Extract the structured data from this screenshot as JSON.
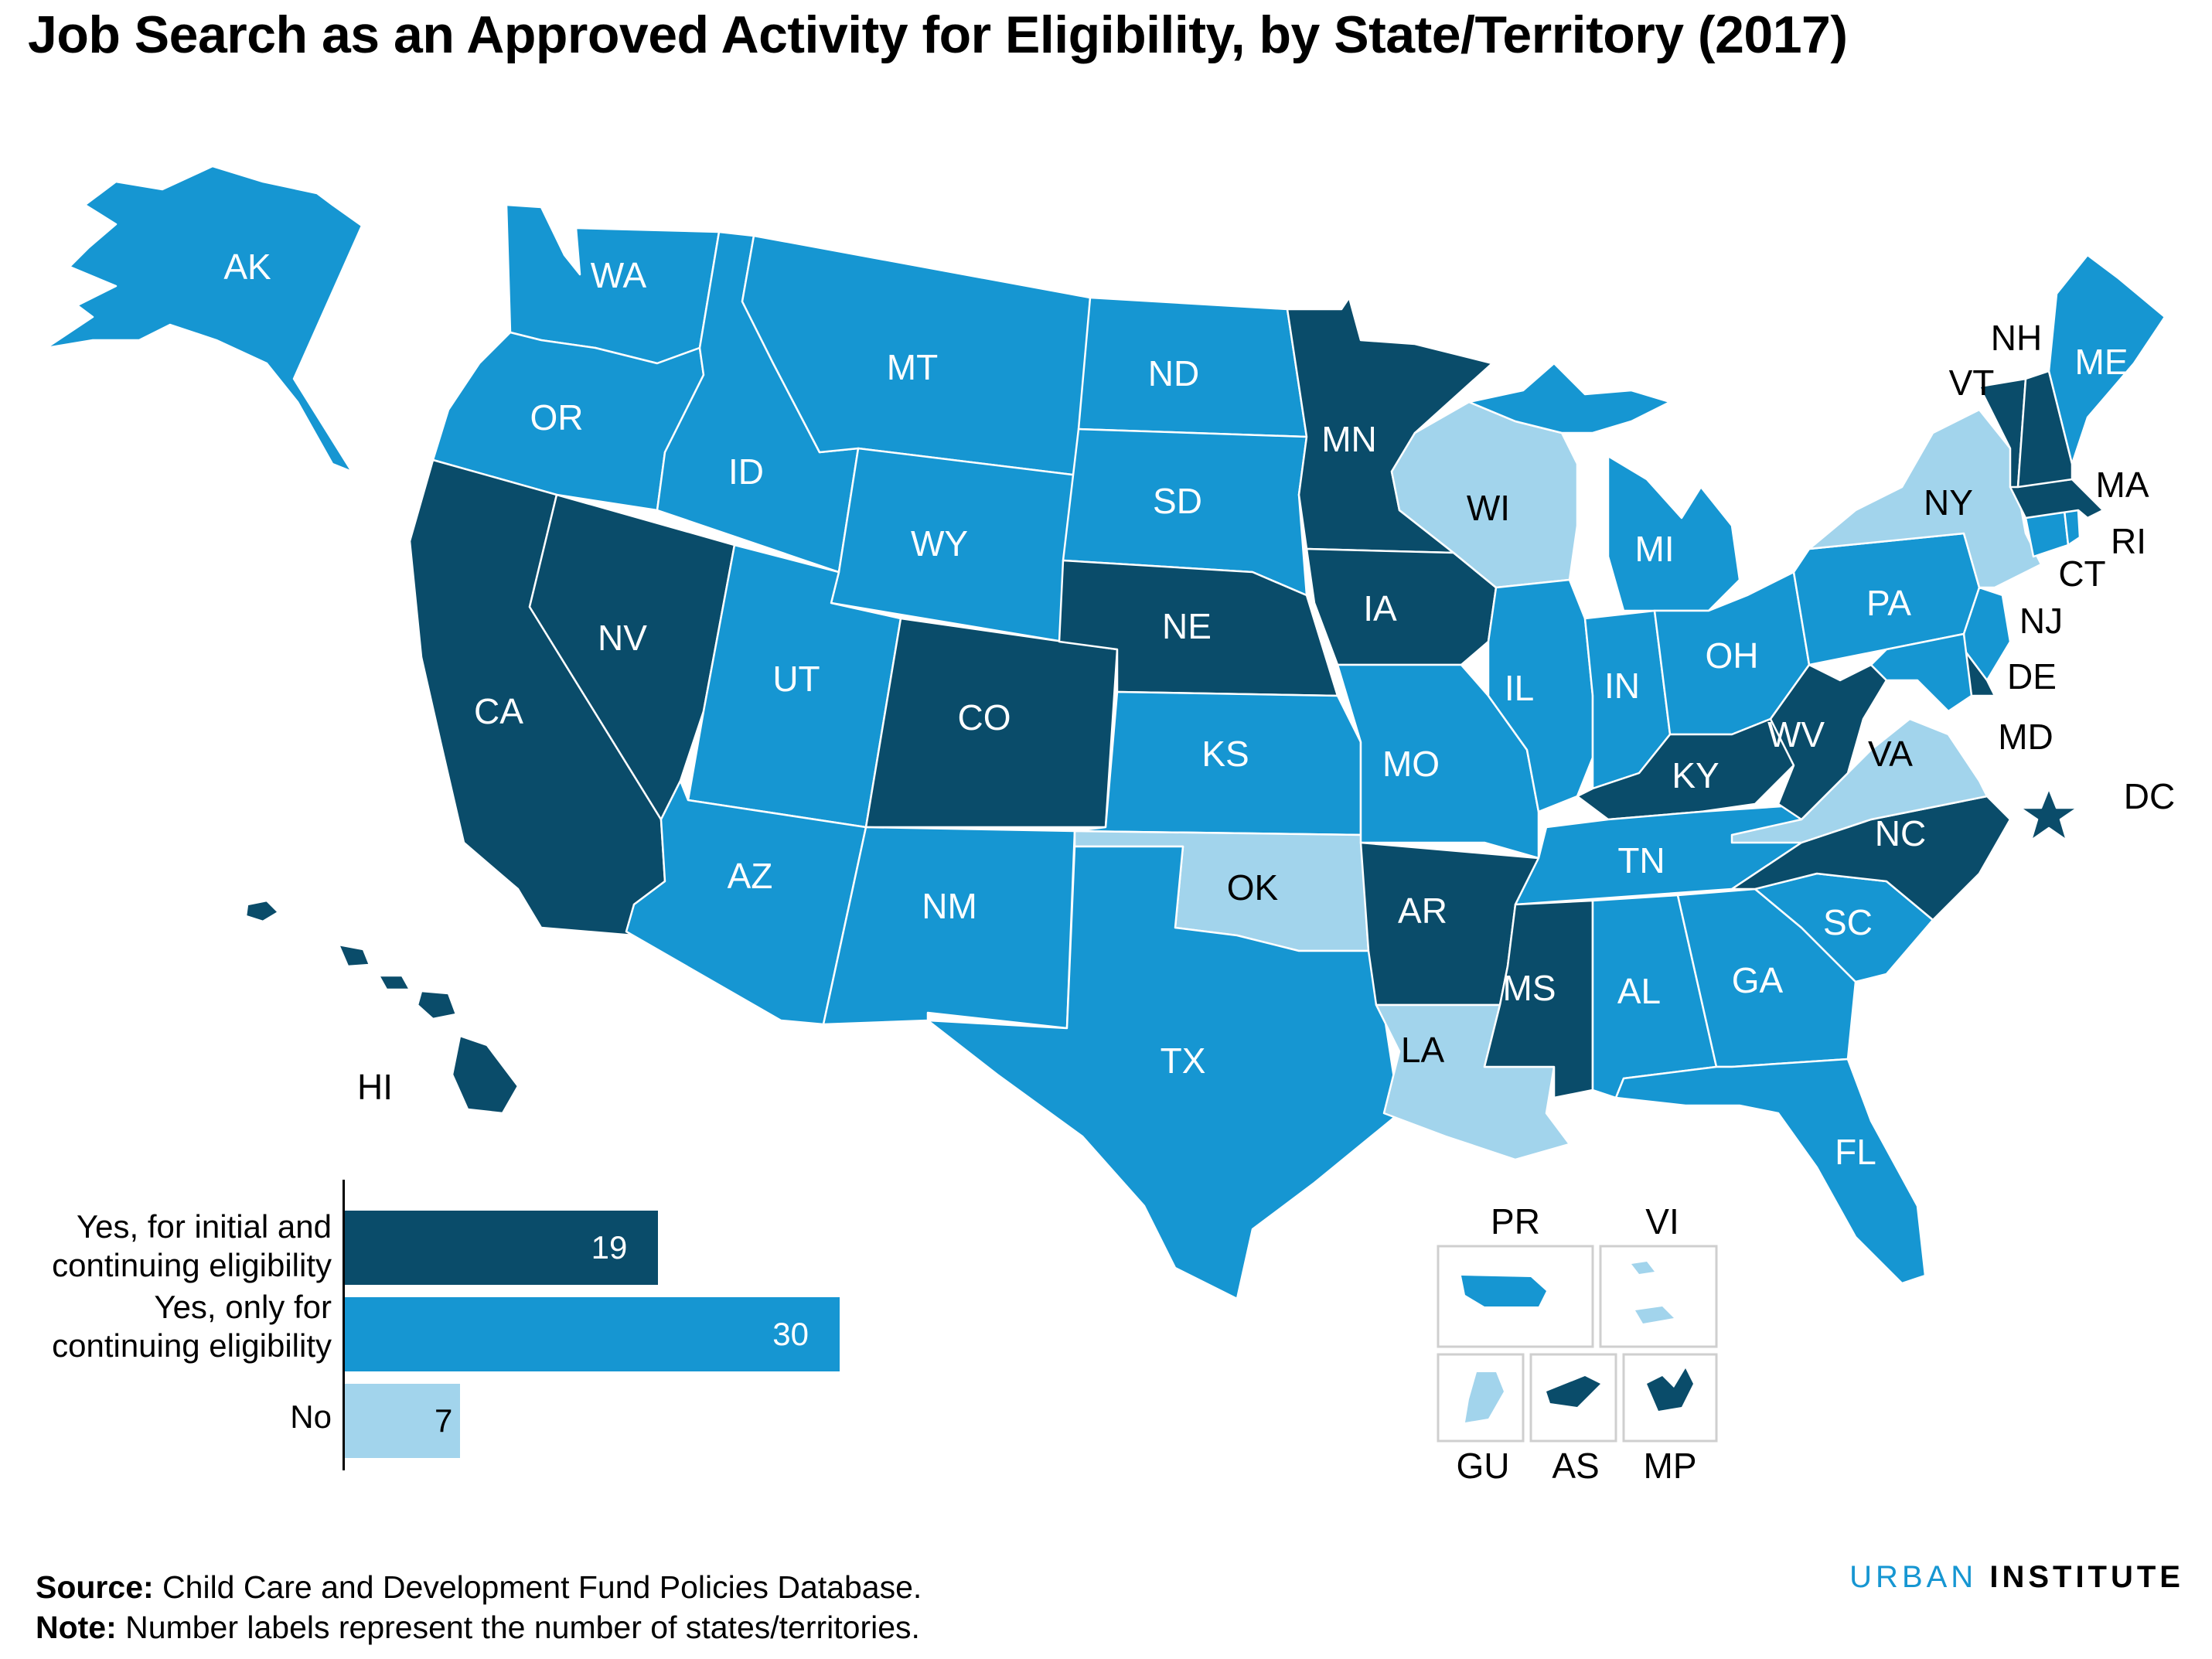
{
  "title": "Job Search as an Approved Activity for Eligibility, by State/Territory (2017)",
  "colors": {
    "initial_and_continuing": "#0a4c6a",
    "continuing_only": "#1696d2",
    "no": "#a2d4ec",
    "label_on_dark": "#ffffff",
    "label_on_light": "#000000"
  },
  "states": {
    "AK": {
      "label": "AK",
      "category": "continuing_only"
    },
    "WA": {
      "label": "WA",
      "category": "continuing_only"
    },
    "OR": {
      "label": "OR",
      "category": "continuing_only"
    },
    "CA": {
      "label": "CA",
      "category": "initial_and_continuing"
    },
    "NV": {
      "label": "NV",
      "category": "initial_and_continuing"
    },
    "ID": {
      "label": "ID",
      "category": "continuing_only"
    },
    "MT": {
      "label": "MT",
      "category": "continuing_only"
    },
    "WY": {
      "label": "WY",
      "category": "continuing_only"
    },
    "UT": {
      "label": "UT",
      "category": "continuing_only"
    },
    "AZ": {
      "label": "AZ",
      "category": "continuing_only"
    },
    "CO": {
      "label": "CO",
      "category": "initial_and_continuing"
    },
    "NM": {
      "label": "NM",
      "category": "continuing_only"
    },
    "ND": {
      "label": "ND",
      "category": "continuing_only"
    },
    "SD": {
      "label": "SD",
      "category": "continuing_only"
    },
    "NE": {
      "label": "NE",
      "category": "initial_and_continuing"
    },
    "KS": {
      "label": "KS",
      "category": "continuing_only"
    },
    "OK": {
      "label": "OK",
      "category": "no"
    },
    "TX": {
      "label": "TX",
      "category": "continuing_only"
    },
    "MN": {
      "label": "MN",
      "category": "initial_and_continuing"
    },
    "IA": {
      "label": "IA",
      "category": "initial_and_continuing"
    },
    "MO": {
      "label": "MO",
      "category": "continuing_only"
    },
    "AR": {
      "label": "AR",
      "category": "initial_and_continuing"
    },
    "LA": {
      "label": "LA",
      "category": "no"
    },
    "WI": {
      "label": "WI",
      "category": "no"
    },
    "IL": {
      "label": "IL",
      "category": "continuing_only"
    },
    "MI": {
      "label": "MI",
      "category": "continuing_only"
    },
    "IN": {
      "label": "IN",
      "category": "continuing_only"
    },
    "OH": {
      "label": "OH",
      "category": "continuing_only"
    },
    "KY": {
      "label": "KY",
      "category": "initial_and_continuing"
    },
    "TN": {
      "label": "TN",
      "category": "continuing_only"
    },
    "MS": {
      "label": "MS",
      "category": "initial_and_continuing"
    },
    "AL": {
      "label": "AL",
      "category": "continuing_only"
    },
    "GA": {
      "label": "GA",
      "category": "continuing_only"
    },
    "FL": {
      "label": "FL",
      "category": "continuing_only"
    },
    "SC": {
      "label": "SC",
      "category": "continuing_only"
    },
    "NC": {
      "label": "NC",
      "category": "initial_and_continuing"
    },
    "VA": {
      "label": "VA",
      "category": "no"
    },
    "WV": {
      "label": "WV",
      "category": "initial_and_continuing"
    },
    "PA": {
      "label": "PA",
      "category": "continuing_only"
    },
    "NY": {
      "label": "NY",
      "category": "no"
    },
    "VT": {
      "label": "VT",
      "category": "initial_and_continuing"
    },
    "NH": {
      "label": "NH",
      "category": "initial_and_continuing"
    },
    "ME": {
      "label": "ME",
      "category": "continuing_only"
    },
    "MA": {
      "label": "MA",
      "category": "initial_and_continuing"
    },
    "RI": {
      "label": "RI",
      "category": "continuing_only"
    },
    "CT": {
      "label": "CT",
      "category": "continuing_only"
    },
    "NJ": {
      "label": "NJ",
      "category": "continuing_only"
    },
    "DE": {
      "label": "DE",
      "category": "initial_and_continuing"
    },
    "MD": {
      "label": "MD",
      "category": "continuing_only"
    },
    "DC": {
      "label": "DC",
      "category": "initial_and_continuing"
    },
    "HI": {
      "label": "HI",
      "category": "initial_and_continuing"
    }
  },
  "territories": {
    "PR": {
      "label": "PR",
      "category": "continuing_only"
    },
    "VI": {
      "label": "VI",
      "category": "no"
    },
    "GU": {
      "label": "GU",
      "category": "no"
    },
    "AS": {
      "label": "AS",
      "category": "initial_and_continuing"
    },
    "MP": {
      "label": "MP",
      "category": "initial_and_continuing"
    }
  },
  "chart_data": {
    "type": "bar",
    "orientation": "horizontal",
    "categories": [
      "Yes, for initial and continuing eligibility",
      "Yes, only for continuing eligibility",
      "No"
    ],
    "values": [
      19,
      30,
      7
    ],
    "value_labels": [
      "19",
      "30",
      "7"
    ]
  },
  "legend_bars": [
    {
      "line1": "Yes, for initial and",
      "line2": "continuing eligibility",
      "value": "19"
    },
    {
      "line1": "Yes, only for",
      "line2": "continuing eligibility",
      "value": "30"
    },
    {
      "line1": "No",
      "line2": "",
      "value": "7"
    }
  ],
  "footer": {
    "source_label": "Source:",
    "source_text": " Child Care and Development Fund Policies Database.",
    "note_label": "Note:",
    "note_text": " Number labels represent the number of states/territories."
  },
  "logo": {
    "urban": "URBAN",
    "institute": "INSTITUTE"
  }
}
